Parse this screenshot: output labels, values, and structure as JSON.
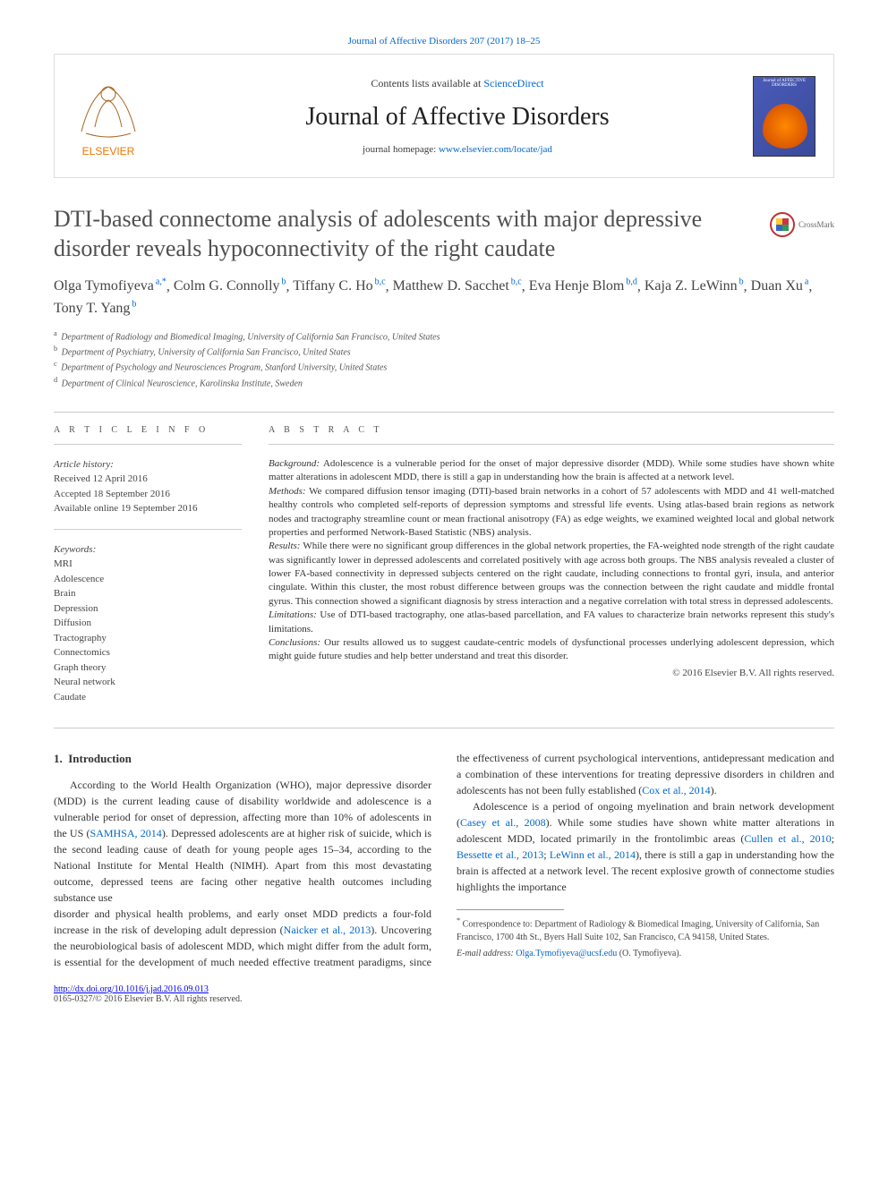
{
  "top_citation": "Journal of Affective Disorders 207 (2017) 18–25",
  "header": {
    "contents_prefix": "Contents lists available at ",
    "contents_link": "ScienceDirect",
    "journal_name": "Journal of Affective Disorders",
    "homepage_prefix": "journal homepage: ",
    "homepage_url": "www.elsevier.com/locate/jad",
    "publisher": "ELSEVIER",
    "cover_caption": "Journal of\nAFFECTIVE DISORDERS"
  },
  "crossmark_label": "CrossMark",
  "title": "DTI-based connectome analysis of adolescents with major depressive disorder reveals hypoconnectivity of the right caudate",
  "authors": [
    {
      "name": "Olga Tymofiyeva",
      "affil": "a,*"
    },
    {
      "name": "Colm G. Connolly",
      "affil": "b"
    },
    {
      "name": "Tiffany C. Ho",
      "affil": "b,c"
    },
    {
      "name": "Matthew D. Sacchet",
      "affil": "b,c"
    },
    {
      "name": "Eva Henje Blom",
      "affil": "b,d"
    },
    {
      "name": "Kaja Z. LeWinn",
      "affil": "b"
    },
    {
      "name": "Duan Xu",
      "affil": "a"
    },
    {
      "name": "Tony T. Yang",
      "affil": "b"
    }
  ],
  "affiliations": [
    {
      "key": "a",
      "text": "Department of Radiology and Biomedical Imaging, University of California San Francisco, United States"
    },
    {
      "key": "b",
      "text": "Department of Psychiatry, University of California San Francisco, United States"
    },
    {
      "key": "c",
      "text": "Department of Psychology and Neurosciences Program, Stanford University, United States"
    },
    {
      "key": "d",
      "text": "Department of Clinical Neuroscience, Karolinska Institute, Sweden"
    }
  ],
  "article_info": {
    "heading": "A R T I C L E  I N F O",
    "history_label": "Article history:",
    "history": [
      "Received 12 April 2016",
      "Accepted 18 September 2016",
      "Available online 19 September 2016"
    ],
    "keywords_label": "Keywords:",
    "keywords": [
      "MRI",
      "Adolescence",
      "Brain",
      "Depression",
      "Diffusion",
      "Tractography",
      "Connectomics",
      "Graph theory",
      "Neural network",
      "Caudate"
    ]
  },
  "abstract": {
    "heading": "A B S T R A C T",
    "sections": [
      {
        "label": "Background:",
        "text": "Adolescence is a vulnerable period for the onset of major depressive disorder (MDD). While some studies have shown white matter alterations in adolescent MDD, there is still a gap in understanding how the brain is affected at a network level."
      },
      {
        "label": "Methods:",
        "text": "We compared diffusion tensor imaging (DTI)-based brain networks in a cohort of 57 adolescents with MDD and 41 well-matched healthy controls who completed self-reports of depression symptoms and stressful life events. Using atlas-based brain regions as network nodes and tractography streamline count or mean fractional anisotropy (FA) as edge weights, we examined weighted local and global network properties and performed Network-Based Statistic (NBS) analysis."
      },
      {
        "label": "Results:",
        "text": "While there were no significant group differences in the global network properties, the FA-weighted node strength of the right caudate was significantly lower in depressed adolescents and correlated positively with age across both groups. The NBS analysis revealed a cluster of lower FA-based connectivity in depressed subjects centered on the right caudate, including connections to frontal gyri, insula, and anterior cingulate. Within this cluster, the most robust difference between groups was the connection between the right caudate and middle frontal gyrus. This connection showed a significant diagnosis by stress interaction and a negative correlation with total stress in depressed adolescents."
      },
      {
        "label": "Limitations:",
        "text": "Use of DTI-based tractography, one atlas-based parcellation, and FA values to characterize brain networks represent this study's limitations."
      },
      {
        "label": "Conclusions:",
        "text": "Our results allowed us to suggest caudate-centric models of dysfunctional processes underlying adolescent depression, which might guide future studies and help better understand and treat this disorder."
      }
    ],
    "copyright": "© 2016 Elsevier B.V. All rights reserved."
  },
  "body": {
    "section_number": "1.",
    "section_title": "Introduction",
    "paragraphs": [
      {
        "text_parts": [
          {
            "t": "According to the World Health Organization (WHO), major depressive disorder (MDD) is the current leading cause of disability worldwide and adolescence is a vulnerable period for onset of depression, affecting more than 10% of adolescents in the US ("
          },
          {
            "t": "SAMHSA, 2014",
            "link": true
          },
          {
            "t": "). Depressed adolescents are at higher risk of suicide, which is the second leading cause of death for young people ages 15–34, according to the National Institute for Mental Health (NIMH). Apart from this most devastating outcome, depressed teens are facing other negative health outcomes including substance use "
          }
        ]
      },
      {
        "continues": true,
        "text_parts": [
          {
            "t": "disorder and physical health problems, and early onset MDD predicts a four-fold increase in the risk of developing adult depression ("
          },
          {
            "t": "Naicker et al., 2013",
            "link": true
          },
          {
            "t": "). Uncovering the neurobiological basis of adolescent MDD, which might differ from the adult form, is essential for the development of much needed effective treatment paradigms, since the effectiveness of current psychological interventions, antidepressant medication and a combination of these interventions for treating depressive disorders in children and adolescents has not been fully established ("
          },
          {
            "t": "Cox et al., 2014",
            "link": true
          },
          {
            "t": ")."
          }
        ]
      },
      {
        "text_parts": [
          {
            "t": "Adolescence is a period of ongoing myelination and brain network development ("
          },
          {
            "t": "Casey et al., 2008",
            "link": true
          },
          {
            "t": "). While some studies have shown white matter alterations in adolescent MDD, located primarily in the frontolimbic areas ("
          },
          {
            "t": "Cullen et al., 2010",
            "link": true
          },
          {
            "t": "; "
          },
          {
            "t": "Bessette et al., 2013",
            "link": true
          },
          {
            "t": "; "
          },
          {
            "t": "LeWinn et al., 2014",
            "link": true
          },
          {
            "t": "), there is still a gap in understanding how the brain is affected at a network level. The recent explosive growth of connectome studies highlights the importance"
          }
        ]
      }
    ]
  },
  "footnotes": {
    "correspondence_marker": "*",
    "correspondence": "Correspondence to: Department of Radiology & Biomedical Imaging, University of California, San Francisco, 1700 4th St., Byers Hall Suite 102, San Francisco, CA 94158, United States.",
    "email_label": "E-mail address: ",
    "email": "Olga.Tymofiyeva@ucsf.edu",
    "email_author": " (O. Tymofiyeva)."
  },
  "doi": "http://dx.doi.org/10.1016/j.jad.2016.09.013",
  "issn_line": "0165-0327/© 2016 Elsevier B.V. All rights reserved.",
  "colors": {
    "link": "#0066cc",
    "text": "#333333",
    "muted": "#555555",
    "rule": "#cccccc"
  }
}
